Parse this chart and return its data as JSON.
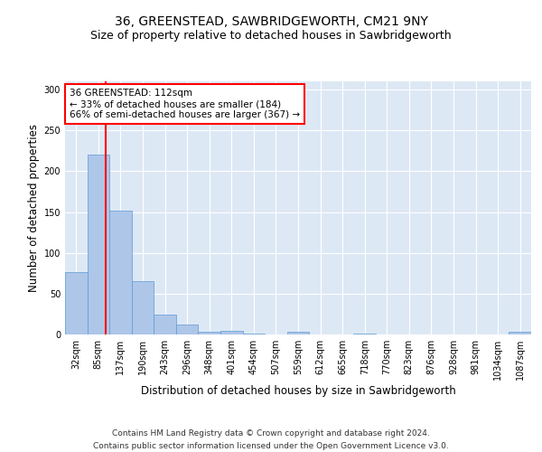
{
  "title_line1": "36, GREENSTEAD, SAWBRIDGEWORTH, CM21 9NY",
  "title_line2": "Size of property relative to detached houses in Sawbridgeworth",
  "xlabel": "Distribution of detached houses by size in Sawbridgeworth",
  "ylabel": "Number of detached properties",
  "bin_labels": [
    "32sqm",
    "85sqm",
    "137sqm",
    "190sqm",
    "243sqm",
    "296sqm",
    "348sqm",
    "401sqm",
    "454sqm",
    "507sqm",
    "559sqm",
    "612sqm",
    "665sqm",
    "718sqm",
    "770sqm",
    "823sqm",
    "876sqm",
    "928sqm",
    "981sqm",
    "1034sqm",
    "1087sqm"
  ],
  "bar_values": [
    76,
    220,
    152,
    65,
    24,
    12,
    3,
    4,
    1,
    0,
    3,
    0,
    0,
    1,
    0,
    0,
    0,
    0,
    0,
    0,
    3
  ],
  "bar_color": "#aec6e8",
  "bar_edge_color": "#5b9bd5",
  "vline_x": 1.33,
  "vline_color": "red",
  "annotation_text_lines": [
    "36 GREENSTEAD: 112sqm",
    "← 33% of detached houses are smaller (184)",
    "66% of semi-detached houses are larger (367) →"
  ],
  "annotation_box_color": "white",
  "annotation_box_edge_color": "red",
  "ylim": [
    0,
    310
  ],
  "yticks": [
    0,
    50,
    100,
    150,
    200,
    250,
    300
  ],
  "footer_text": "Contains HM Land Registry data © Crown copyright and database right 2024.\nContains public sector information licensed under the Open Government Licence v3.0.",
  "bg_color": "#dde8f5",
  "grid_color": "white",
  "title_fontsize": 10,
  "subtitle_fontsize": 9,
  "axis_label_fontsize": 8.5,
  "tick_fontsize": 7,
  "footer_fontsize": 6.5,
  "annotation_fontsize": 7.5
}
